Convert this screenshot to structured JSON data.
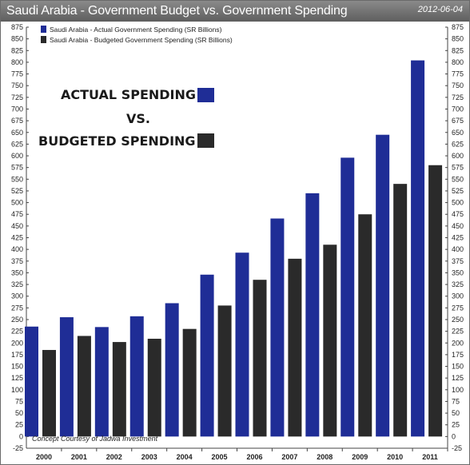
{
  "header": {
    "title": "Saudi Arabia - Government Budget vs. Government Spending",
    "date": "2012-06-04"
  },
  "annotation": {
    "line1": "ACTUAL SPENDING",
    "line2": "VS.",
    "line3": "BUDGETED SPENDING"
  },
  "footnote": "Concept Courtesy of Jadwa Investment",
  "colors": {
    "actual": "#1f2d96",
    "budgeted": "#2a2a2a"
  },
  "chart_data": {
    "type": "bar",
    "categories": [
      "2000",
      "2001",
      "2002",
      "2003",
      "2004",
      "2005",
      "2006",
      "2007",
      "2008",
      "2009",
      "2010",
      "2011"
    ],
    "series": [
      {
        "name": "Saudi Arabia - Actual Government Spending (SR Billions)",
        "values": [
          235,
          255,
          234,
          257,
          285,
          346,
          393,
          466,
          520,
          596,
          645,
          804
        ]
      },
      {
        "name": "Saudi Arabia - Budgeted Government Spending (SR Billions)",
        "values": [
          185,
          215,
          202,
          209,
          230,
          280,
          335,
          380,
          410,
          475,
          540,
          580
        ]
      }
    ],
    "ylim": [
      -25,
      875
    ],
    "yticks": [
      -25,
      0,
      25,
      50,
      75,
      100,
      125,
      150,
      175,
      200,
      225,
      250,
      275,
      300,
      325,
      350,
      375,
      400,
      425,
      450,
      475,
      500,
      525,
      550,
      575,
      600,
      625,
      650,
      675,
      700,
      725,
      750,
      775,
      800,
      825,
      850,
      875
    ],
    "legend_position": "top-left",
    "grid": false
  }
}
